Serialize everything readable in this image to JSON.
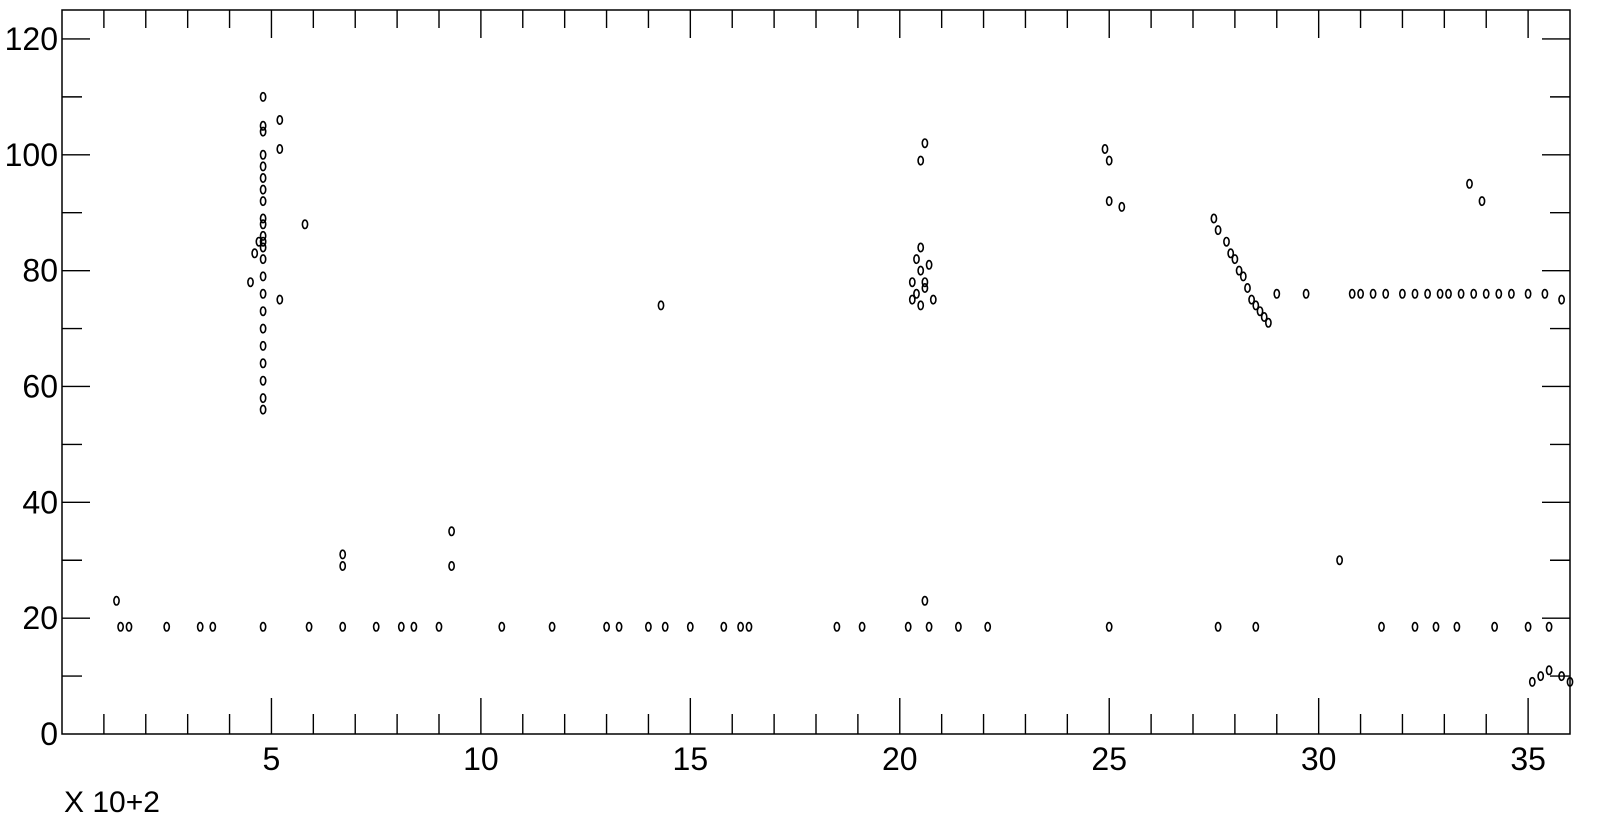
{
  "chart_data": {
    "type": "scatter",
    "title": "",
    "xlabel": "",
    "ylabel": "",
    "x_multiplier_label": "X 10+2",
    "xlim": [
      0,
      36
    ],
    "ylim": [
      0,
      125
    ],
    "x_ticks": [
      5,
      10,
      15,
      20,
      25,
      30,
      35
    ],
    "x_tick_labels": [
      "5",
      "10",
      "15",
      "20",
      "25",
      "30",
      "35"
    ],
    "y_ticks": [
      0,
      20,
      40,
      60,
      80,
      100,
      120
    ],
    "y_tick_labels": [
      "0",
      "20",
      "40",
      "60",
      "80",
      "100",
      "120"
    ],
    "grid": false,
    "series": [
      {
        "marker": "contour",
        "x": [
          4.8,
          4.8,
          4.8,
          4.8,
          4.8,
          4.8,
          4.8,
          4.8,
          4.8,
          4.8,
          4.8,
          4.8,
          4.8,
          4.8,
          4.8,
          4.8,
          4.8,
          4.8,
          4.8,
          4.8,
          4.8,
          4.8,
          4.8,
          4.7,
          4.6,
          4.5,
          5.2,
          5.2,
          5.2,
          5.8,
          14.3,
          20.3,
          20.4,
          20.5,
          20.5,
          20.6,
          20.4,
          20.3,
          20.6,
          20.5,
          20.7,
          20.8,
          20.5,
          20.6,
          24.9,
          25.0,
          25.0,
          25.3,
          27.5,
          27.6,
          27.8,
          27.9,
          28.0,
          28.1,
          28.2,
          28.3,
          28.4,
          28.5,
          28.6,
          28.7,
          28.8,
          29.0,
          29.7,
          30.8,
          31.0,
          31.3,
          31.6,
          32.0,
          32.3,
          32.6,
          32.9,
          33.1,
          33.4,
          33.7,
          34.0,
          34.3,
          34.6,
          35.0,
          35.4,
          35.8,
          33.6,
          33.9,
          35.1,
          35.3,
          35.5,
          35.8,
          36.0,
          1.4,
          1.6,
          2.5,
          3.3,
          3.6,
          4.8,
          5.9,
          6.7,
          7.5,
          8.1,
          8.4,
          9.0,
          10.5,
          11.7,
          13.0,
          13.3,
          14.0,
          14.4,
          15.0,
          15.8,
          16.2,
          16.4,
          18.5,
          19.1,
          20.2,
          20.7,
          21.4,
          22.1,
          25.0,
          27.6,
          28.5,
          31.5,
          32.3,
          32.8,
          33.3,
          34.2,
          35.0,
          35.5,
          9.3,
          9.3,
          6.7,
          6.7,
          30.5,
          20.6,
          1.3
        ],
        "y": [
          110,
          105,
          100,
          96,
          92,
          88,
          85,
          82,
          79,
          76,
          73,
          70,
          67,
          64,
          61,
          58,
          56,
          104,
          98,
          94,
          89,
          86,
          84,
          85,
          83,
          78,
          106,
          101,
          75,
          88,
          74,
          78,
          76,
          80,
          74,
          77,
          82,
          75,
          78,
          84,
          81,
          75,
          99,
          102,
          101,
          99,
          92,
          91,
          89,
          87,
          85,
          83,
          82,
          80,
          79,
          77,
          75,
          74,
          73,
          72,
          71,
          76,
          76,
          76,
          76,
          76,
          76,
          76,
          76,
          76,
          76,
          76,
          76,
          76,
          76,
          76,
          76,
          76,
          76,
          75,
          95,
          92,
          9,
          10,
          11,
          10,
          9,
          18.5,
          18.5,
          18.5,
          18.5,
          18.5,
          18.5,
          18.5,
          18.5,
          18.5,
          18.5,
          18.5,
          18.5,
          18.5,
          18.5,
          18.5,
          18.5,
          18.5,
          18.5,
          18.5,
          18.5,
          18.5,
          18.5,
          18.5,
          18.5,
          18.5,
          18.5,
          18.5,
          18.5,
          18.5,
          18.5,
          18.5,
          18.5,
          18.5,
          18.5,
          18.5,
          18.5,
          18.5,
          18.5,
          35,
          29,
          31,
          29,
          30,
          23,
          23
        ]
      }
    ]
  }
}
